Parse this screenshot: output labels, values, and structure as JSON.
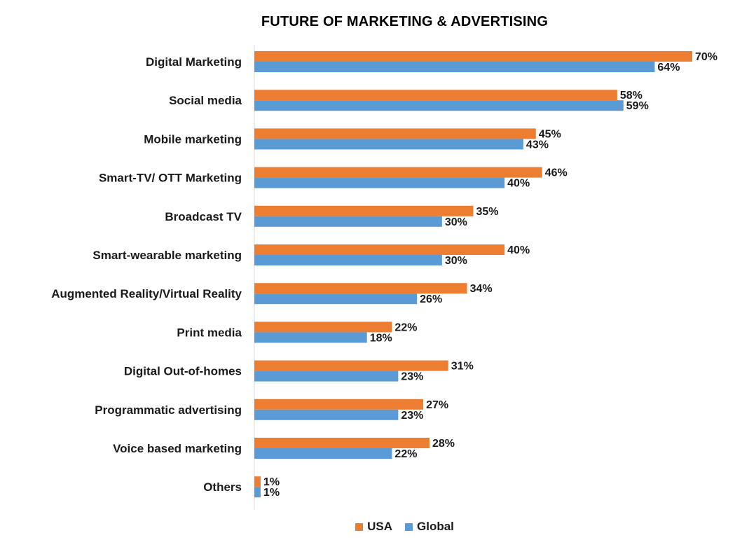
{
  "colors": {
    "usa": "#ED7D31",
    "global": "#5B9BD5",
    "axis": "#D9D9D9"
  },
  "chart_data": {
    "type": "bar",
    "orientation": "horizontal",
    "title": "FUTURE OF MARKETING & ADVERTISING",
    "xlabel": "",
    "ylabel": "",
    "xlim": [
      0,
      70
    ],
    "grid": false,
    "legend": "bottom",
    "categories": [
      "Digital Marketing",
      "Social media",
      "Mobile marketing",
      "Smart-TV/ OTT Marketing",
      "Broadcast TV",
      "Smart-wearable marketing",
      "Augmented Reality/Virtual Reality",
      "Print media",
      "Digital Out-of-homes",
      "Programmatic advertising",
      "Voice based marketing",
      "Others"
    ],
    "series": [
      {
        "name": "USA",
        "color": "#ED7D31",
        "values": [
          70,
          58,
          45,
          46,
          35,
          40,
          34,
          22,
          31,
          27,
          28,
          1
        ],
        "labels": [
          "70%",
          "58%",
          "45%",
          "46%",
          "35%",
          "40%",
          "34%",
          "22%",
          "31%",
          "27%",
          "28%",
          "1%"
        ]
      },
      {
        "name": "Global",
        "color": "#5B9BD5",
        "values": [
          64,
          59,
          43,
          40,
          30,
          30,
          26,
          18,
          23,
          23,
          22,
          1
        ],
        "labels": [
          "64%",
          "59%",
          "43%",
          "40%",
          "30%",
          "30%",
          "26%",
          "18%",
          "23%",
          "23%",
          "22%",
          "1%"
        ]
      }
    ]
  }
}
